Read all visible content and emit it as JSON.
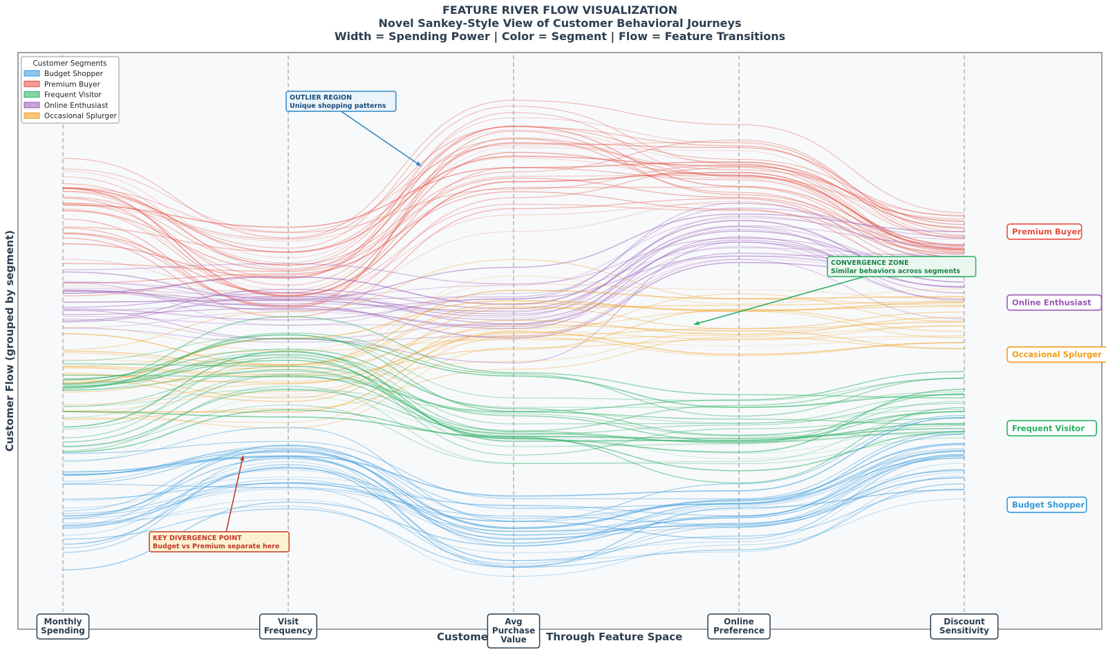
{
  "chart_data": {
    "type": "line",
    "title": "FEATURE RIVER FLOW VISUALIZATION",
    "subtitle": "Novel Sankey-Style View of Customer Behavioral Journeys",
    "subtitle2": "Width = Spending Power | Color = Segment | Flow = Feature Transitions",
    "ylabel": "Customer Flow (grouped by segment)",
    "xlabel_left": "Custome",
    "xlabel_right": "Through Feature Space",
    "grid": false,
    "legend": {
      "title": "Customer Segments",
      "placement": "top-left",
      "entries": [
        "Budget Shopper",
        "Premium Buyer",
        "Frequent Visitor",
        "Online Enthusiast",
        "Occasional Splurger"
      ]
    },
    "axes": [
      [
        "Monthly",
        "Spending"
      ],
      [
        "Visit",
        "Frequency"
      ],
      [
        "Avg",
        "Purchase",
        "Value"
      ],
      [
        "Online",
        "Preference"
      ],
      [
        "Discount",
        "Sensitivity"
      ]
    ],
    "series": [
      {
        "name": "Premium Buyer",
        "color": "#e74c3c",
        "lines": 32,
        "center": [
          0.73,
          0.62,
          0.82,
          0.79,
          0.67
        ],
        "spread": [
          0.09,
          0.07,
          0.08,
          0.06,
          0.05
        ]
      },
      {
        "name": "Online Enthusiast",
        "color": "#9b59b6",
        "lines": 24,
        "center": [
          0.57,
          0.55,
          0.55,
          0.68,
          0.62
        ],
        "spread": [
          0.05,
          0.05,
          0.06,
          0.05,
          0.06
        ]
      },
      {
        "name": "Occasional Splurger",
        "color": "#f39c12",
        "lines": 22,
        "center": [
          0.43,
          0.41,
          0.53,
          0.52,
          0.52
        ],
        "spread": [
          0.07,
          0.08,
          0.06,
          0.06,
          0.05
        ]
      },
      {
        "name": "Frequent Visitor",
        "color": "#27ae60",
        "lines": 28,
        "center": [
          0.36,
          0.44,
          0.33,
          0.31,
          0.37
        ],
        "spread": [
          0.08,
          0.06,
          0.06,
          0.06,
          0.05
        ]
      },
      {
        "name": "Budget Shopper",
        "color": "#3498db",
        "lines": 30,
        "center": [
          0.18,
          0.26,
          0.14,
          0.17,
          0.27
        ],
        "spread": [
          0.07,
          0.06,
          0.06,
          0.05,
          0.05
        ]
      }
    ],
    "segment_labels": [
      {
        "text": "Premium Buyer",
        "color": "#e74c3c",
        "y": 0.69
      },
      {
        "text": "Online Enthusiast",
        "color": "#9b59b6",
        "y": 0.56
      },
      {
        "text": "Occasional Splurger",
        "color": "#f39c12",
        "y": 0.465
      },
      {
        "text": "Frequent Visitor",
        "color": "#27ae60",
        "y": 0.33
      },
      {
        "text": "Budget Shopper",
        "color": "#3498db",
        "y": 0.19
      }
    ],
    "annotations": [
      {
        "title": "OUTLIER REGION",
        "text": "Unique shopping patterns",
        "color": "#2e86c1",
        "fill": "#eaf4fb",
        "target_axis": 1.59,
        "target_y": 0.81
      },
      {
        "title": "CONVERGENCE ZONE",
        "text": "Similar behaviors across segments",
        "color": "#27ae60",
        "fill": "#e9f7ef",
        "target_axis": 2.8,
        "target_y": 0.52
      },
      {
        "title": "KEY DIVERGENCE POINT",
        "text": "Budget vs Premium separate here",
        "color": "#c0392b",
        "fill": "#fdf2d0",
        "target_axis": 0.8,
        "target_y": 0.28
      }
    ]
  }
}
